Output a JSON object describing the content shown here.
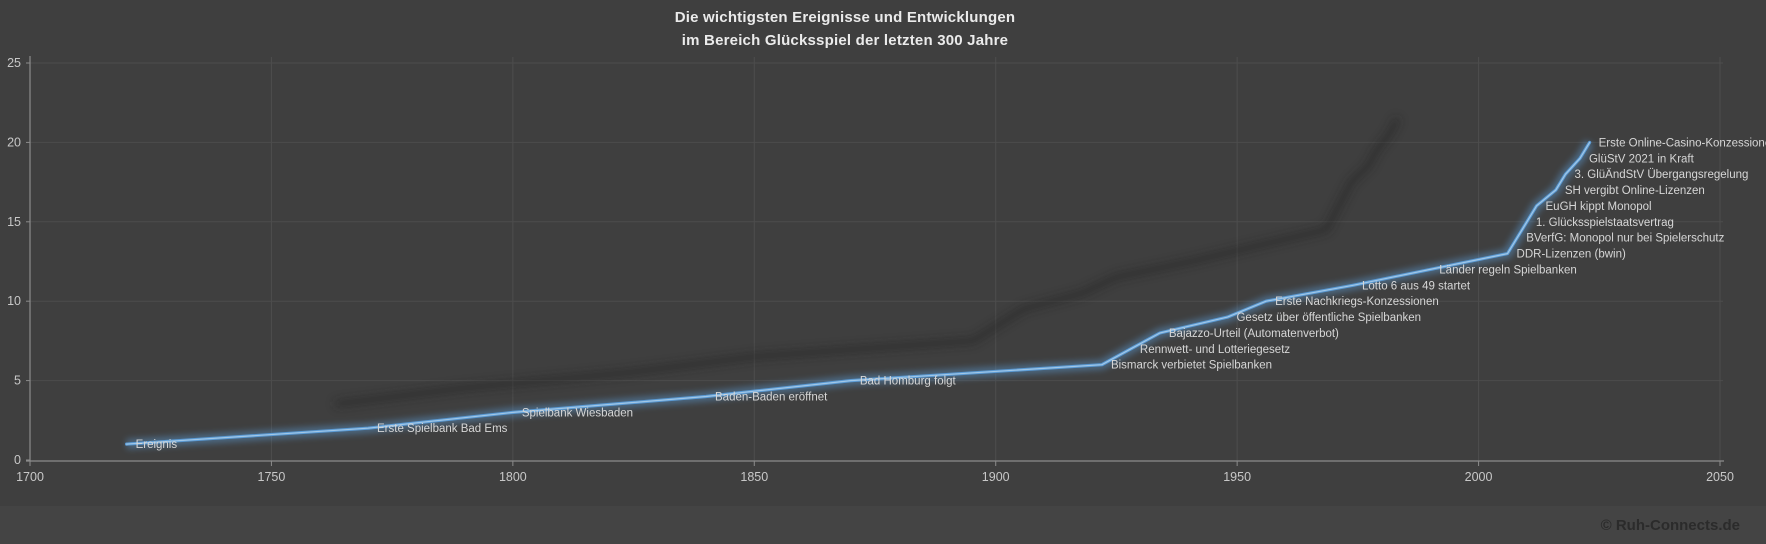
{
  "header": {
    "title_line1": "Die wichtigsten Ereignisse und Entwicklungen",
    "title_line2": "im Bereich Glücksspiel der letzten 300 Jahre"
  },
  "footer": {
    "copyright": "© Ruh-Connects.de"
  },
  "chart_data": {
    "type": "line",
    "title": "Die wichtigsten Ereignisse und Entwicklungen im Bereich Glücksspiel der letzten 300 Jahre",
    "series_name": "Ereignis",
    "xlabel": "",
    "ylabel": "",
    "xlim": [
      1700,
      2050
    ],
    "ylim": [
      0,
      25
    ],
    "x_ticks": [
      1700,
      1750,
      1800,
      1850,
      1900,
      1950,
      2000,
      2050
    ],
    "y_ticks": [
      0,
      5,
      10,
      15,
      20,
      25
    ],
    "grid": true,
    "legend_position": "none",
    "x": [
      1720,
      1770,
      1800,
      1840,
      1870,
      1922,
      1928,
      1934,
      1948,
      1956,
      1974,
      1990,
      2006,
      2008,
      2010,
      2012,
      2016,
      2018,
      2021,
      2023
    ],
    "values": [
      1,
      2,
      3,
      4,
      5,
      6,
      7,
      8,
      9,
      10,
      11,
      12,
      13,
      14,
      15,
      16,
      17,
      18,
      19,
      20
    ],
    "point_labels": [
      "Ereignis",
      "Erste Spielbank Bad Ems",
      "Spielbank Wiesbaden",
      "Baden-Baden eröffnet",
      "Bad Homburg folgt",
      "Bismarck verbietet Spielbanken",
      "Rennwett- und Lotteriegesetz",
      "Bajazzo-Urteil (Automatenverbot)",
      "Gesetz über öffentliche Spielbanken",
      "Erste Nachkriegs-Konzessionen",
      "Lotto 6 aus 49 startet",
      "Länder regeln Spielbanken",
      "DDR-Lizenzen (bwin)",
      "BVerfG: Monopol nur bei Spielerschutz",
      "1. Glücksspielstaatsvertrag",
      "EuGH kippt Monopol",
      "SH vergibt Online-Lizenzen",
      "3. GlüÄndStV Übergangsregelung",
      "GlüStV 2021 in Kraft",
      "Erste Online-Casino-Konzessionen"
    ],
    "colors": {
      "background": "#3f3f3f",
      "line": "#5b9bd5",
      "line_core": "#a9cce9",
      "point_label_text": "#d6d6d6",
      "tick_text": "#c8c8c8",
      "grid": "#4d4d4d",
      "axis": "#8c8c8c",
      "title_text": "#ebebeb",
      "shadow": "#242424"
    }
  }
}
